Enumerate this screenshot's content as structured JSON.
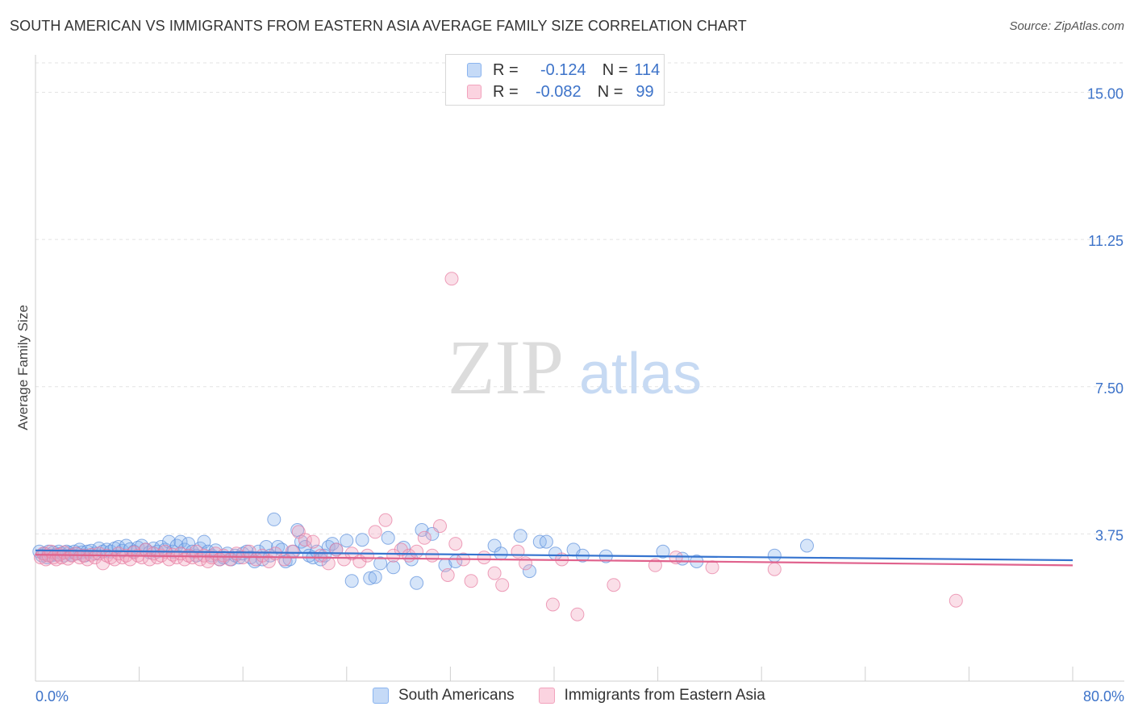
{
  "title": "SOUTH AMERICAN VS IMMIGRANTS FROM EASTERN ASIA AVERAGE FAMILY SIZE CORRELATION CHART",
  "source": "Source: ZipAtlas.com",
  "watermark": {
    "zip": "ZIP",
    "atlas": "atlas"
  },
  "legend": {
    "rows": [
      {
        "r_label": "R =",
        "r_value": "-0.124",
        "n_label": "N =",
        "n_value": "114",
        "color": "#8ab4ef"
      },
      {
        "r_label": "R =",
        "r_value": "-0.082",
        "n_label": "N =",
        "n_value": "99",
        "color": "#f2a3bd"
      }
    ]
  },
  "chart_data": {
    "type": "scatter",
    "title": "SOUTH AMERICAN VS IMMIGRANTS FROM EASTERN ASIA AVERAGE FAMILY SIZE CORRELATION CHART",
    "xlabel": "",
    "ylabel": "Average Family Size",
    "xlim": [
      0,
      80
    ],
    "ylim": [
      0,
      15.75
    ],
    "y_ticks": [
      3.75,
      7.5,
      11.25,
      15.0
    ],
    "y_tick_labels": [
      "3.75",
      "7.50",
      "11.25",
      "15.00"
    ],
    "x_tick_labels": [
      "0.0%",
      "80.0%"
    ],
    "grid": true,
    "legend_position": "bottom",
    "series": [
      {
        "name": "South Americans",
        "color": "#8ab4ef",
        "stroke": "#5b8fdc",
        "trend": {
          "x": [
            0,
            80
          ],
          "y": [
            3.33,
            3.08
          ]
        },
        "points": [
          [
            0.3,
            3.3
          ],
          [
            0.5,
            3.2
          ],
          [
            0.7,
            3.25
          ],
          [
            0.9,
            3.15
          ],
          [
            1.0,
            3.3
          ],
          [
            1.2,
            3.2
          ],
          [
            1.4,
            3.28
          ],
          [
            1.6,
            3.22
          ],
          [
            1.8,
            3.3
          ],
          [
            2.0,
            3.25
          ],
          [
            2.2,
            3.2
          ],
          [
            2.4,
            3.3
          ],
          [
            2.6,
            3.27
          ],
          [
            2.8,
            3.22
          ],
          [
            3.0,
            3.3
          ],
          [
            3.2,
            3.25
          ],
          [
            3.4,
            3.35
          ],
          [
            3.6,
            3.28
          ],
          [
            3.8,
            3.2
          ],
          [
            4.0,
            3.3
          ],
          [
            4.3,
            3.32
          ],
          [
            4.6,
            3.25
          ],
          [
            4.9,
            3.38
          ],
          [
            5.2,
            3.3
          ],
          [
            5.5,
            3.35
          ],
          [
            5.8,
            3.3
          ],
          [
            6.1,
            3.38
          ],
          [
            6.4,
            3.42
          ],
          [
            6.7,
            3.32
          ],
          [
            7.0,
            3.45
          ],
          [
            7.3,
            3.36
          ],
          [
            7.6,
            3.3
          ],
          [
            7.9,
            3.4
          ],
          [
            8.2,
            3.45
          ],
          [
            8.5,
            3.35
          ],
          [
            8.8,
            3.28
          ],
          [
            9.1,
            3.38
          ],
          [
            9.4,
            3.3
          ],
          [
            9.7,
            3.42
          ],
          [
            10.0,
            3.35
          ],
          [
            10.3,
            3.55
          ],
          [
            10.6,
            3.3
          ],
          [
            10.9,
            3.45
          ],
          [
            11.2,
            3.55
          ],
          [
            11.5,
            3.35
          ],
          [
            11.8,
            3.5
          ],
          [
            12.1,
            3.3
          ],
          [
            12.4,
            3.2
          ],
          [
            12.7,
            3.38
          ],
          [
            13.0,
            3.55
          ],
          [
            13.3,
            3.3
          ],
          [
            13.6,
            3.2
          ],
          [
            13.9,
            3.33
          ],
          [
            14.2,
            3.1
          ],
          [
            14.5,
            3.15
          ],
          [
            14.8,
            3.25
          ],
          [
            15.1,
            3.1
          ],
          [
            15.4,
            3.2
          ],
          [
            15.7,
            3.15
          ],
          [
            16.0,
            3.25
          ],
          [
            16.3,
            3.3
          ],
          [
            16.6,
            3.15
          ],
          [
            16.9,
            3.05
          ],
          [
            17.2,
            3.3
          ],
          [
            17.5,
            3.1
          ],
          [
            17.8,
            3.42
          ],
          [
            18.1,
            3.2
          ],
          [
            18.4,
            4.12
          ],
          [
            18.7,
            3.42
          ],
          [
            19.0,
            3.35
          ],
          [
            19.3,
            3.05
          ],
          [
            19.6,
            3.1
          ],
          [
            19.9,
            3.3
          ],
          [
            20.2,
            3.85
          ],
          [
            20.5,
            3.55
          ],
          [
            20.8,
            3.42
          ],
          [
            21.1,
            3.2
          ],
          [
            21.4,
            3.15
          ],
          [
            21.7,
            3.3
          ],
          [
            22.0,
            3.1
          ],
          [
            22.3,
            3.2
          ],
          [
            22.6,
            3.42
          ],
          [
            22.9,
            3.5
          ],
          [
            23.2,
            3.35
          ],
          [
            24.0,
            3.58
          ],
          [
            24.4,
            2.55
          ],
          [
            25.2,
            3.6
          ],
          [
            25.8,
            2.62
          ],
          [
            26.2,
            2.65
          ],
          [
            26.6,
            3.0
          ],
          [
            27.2,
            3.65
          ],
          [
            27.6,
            2.9
          ],
          [
            28.4,
            3.4
          ],
          [
            29.0,
            3.1
          ],
          [
            29.4,
            2.5
          ],
          [
            29.8,
            3.85
          ],
          [
            30.6,
            3.75
          ],
          [
            31.6,
            2.95
          ],
          [
            32.4,
            3.05
          ],
          [
            35.4,
            3.45
          ],
          [
            35.9,
            3.25
          ],
          [
            37.4,
            3.7
          ],
          [
            38.1,
            2.8
          ],
          [
            38.9,
            3.55
          ],
          [
            39.4,
            3.55
          ],
          [
            41.5,
            3.35
          ],
          [
            57.0,
            3.2
          ],
          [
            59.5,
            3.45
          ],
          [
            49.9,
            3.12
          ],
          [
            51.0,
            3.05
          ],
          [
            48.4,
            3.3
          ],
          [
            40.1,
            3.25
          ],
          [
            42.2,
            3.2
          ],
          [
            44.0,
            3.18
          ]
        ]
      },
      {
        "name": "Immigrants from Eastern Asia",
        "color": "#f2a3bd",
        "stroke": "#e77b9f",
        "trend": {
          "x": [
            0,
            80
          ],
          "y": [
            3.22,
            2.95
          ]
        },
        "points": [
          [
            0.4,
            3.15
          ],
          [
            0.6,
            3.25
          ],
          [
            0.8,
            3.1
          ],
          [
            1.0,
            3.2
          ],
          [
            1.2,
            3.3
          ],
          [
            1.4,
            3.15
          ],
          [
            1.6,
            3.1
          ],
          [
            1.8,
            3.22
          ],
          [
            2.0,
            3.15
          ],
          [
            2.2,
            3.28
          ],
          [
            2.5,
            3.12
          ],
          [
            2.8,
            3.2
          ],
          [
            3.1,
            3.25
          ],
          [
            3.4,
            3.15
          ],
          [
            3.7,
            3.2
          ],
          [
            4.0,
            3.1
          ],
          [
            4.3,
            3.22
          ],
          [
            4.6,
            3.15
          ],
          [
            4.9,
            3.25
          ],
          [
            5.2,
            3.0
          ],
          [
            5.5,
            3.2
          ],
          [
            5.8,
            3.15
          ],
          [
            6.1,
            3.1
          ],
          [
            6.4,
            3.25
          ],
          [
            6.7,
            3.15
          ],
          [
            7.0,
            3.2
          ],
          [
            7.3,
            3.1
          ],
          [
            7.6,
            3.28
          ],
          [
            7.9,
            3.2
          ],
          [
            8.2,
            3.15
          ],
          [
            8.5,
            3.35
          ],
          [
            8.8,
            3.1
          ],
          [
            9.1,
            3.25
          ],
          [
            9.4,
            3.15
          ],
          [
            9.7,
            3.2
          ],
          [
            10.0,
            3.3
          ],
          [
            10.3,
            3.1
          ],
          [
            10.6,
            3.22
          ],
          [
            10.9,
            3.15
          ],
          [
            11.2,
            3.25
          ],
          [
            11.5,
            3.1
          ],
          [
            11.8,
            3.2
          ],
          [
            12.1,
            3.15
          ],
          [
            12.4,
            3.3
          ],
          [
            12.7,
            3.1
          ],
          [
            13.0,
            3.2
          ],
          [
            13.3,
            3.05
          ],
          [
            13.6,
            3.15
          ],
          [
            13.9,
            3.25
          ],
          [
            14.2,
            3.1
          ],
          [
            14.5,
            3.2
          ],
          [
            15.0,
            3.1
          ],
          [
            15.5,
            3.25
          ],
          [
            16.0,
            3.15
          ],
          [
            16.5,
            3.3
          ],
          [
            17.0,
            3.1
          ],
          [
            17.5,
            3.2
          ],
          [
            18.0,
            3.05
          ],
          [
            18.5,
            3.25
          ],
          [
            19.2,
            3.1
          ],
          [
            19.8,
            3.3
          ],
          [
            20.3,
            3.8
          ],
          [
            20.8,
            3.6
          ],
          [
            21.4,
            3.55
          ],
          [
            22.0,
            3.2
          ],
          [
            22.6,
            3.0
          ],
          [
            23.2,
            3.35
          ],
          [
            23.8,
            3.1
          ],
          [
            24.4,
            3.25
          ],
          [
            25.0,
            3.05
          ],
          [
            25.6,
            3.2
          ],
          [
            26.2,
            3.8
          ],
          [
            27.0,
            4.1
          ],
          [
            27.6,
            3.2
          ],
          [
            28.2,
            3.35
          ],
          [
            28.8,
            3.2
          ],
          [
            29.4,
            3.3
          ],
          [
            30.0,
            3.65
          ],
          [
            30.6,
            3.2
          ],
          [
            31.2,
            3.95
          ],
          [
            31.8,
            2.7
          ],
          [
            32.4,
            3.5
          ],
          [
            33.0,
            3.1
          ],
          [
            33.6,
            2.55
          ],
          [
            34.6,
            3.15
          ],
          [
            35.4,
            2.75
          ],
          [
            36.0,
            2.45
          ],
          [
            37.2,
            3.3
          ],
          [
            37.8,
            3.0
          ],
          [
            39.9,
            1.95
          ],
          [
            40.6,
            3.1
          ],
          [
            41.8,
            1.7
          ],
          [
            44.6,
            2.45
          ],
          [
            47.8,
            2.95
          ],
          [
            49.4,
            3.15
          ],
          [
            52.2,
            2.9
          ],
          [
            57.0,
            2.85
          ],
          [
            71.0,
            2.05
          ],
          [
            32.1,
            10.25
          ]
        ]
      }
    ]
  },
  "bottom_legend": [
    {
      "label": "South Americans",
      "color": "#8ab4ef"
    },
    {
      "label": "Immigrants from Eastern Asia",
      "color": "#f2a3bd"
    }
  ]
}
